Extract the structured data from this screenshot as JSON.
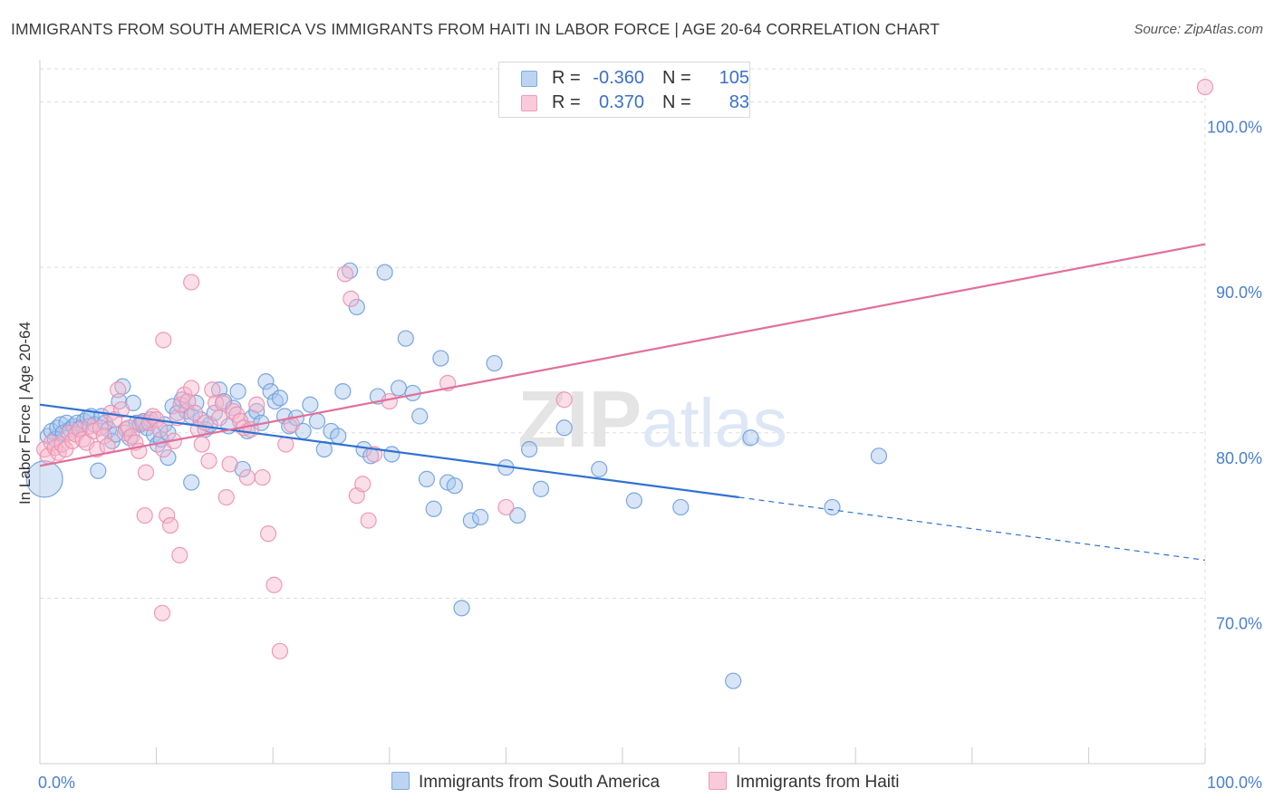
{
  "title": "IMMIGRANTS FROM SOUTH AMERICA VS IMMIGRANTS FROM HAITI IN LABOR FORCE | AGE 20-64 CORRELATION CHART",
  "source": "Source: ZipAtlas.com",
  "watermark": "ZIPatlas",
  "legend": {
    "rows": [
      {
        "r_label": "R =",
        "r_value": "-0.360",
        "n_label": "N =",
        "n_value": "105"
      },
      {
        "r_label": "R =",
        "r_value": "0.370",
        "n_label": "N =",
        "n_value": "83"
      }
    ]
  },
  "colors": {
    "blue_fill": "#a9c6ee",
    "blue_stroke": "#6d9fdc",
    "blue_line": "#2f72d2",
    "pink_fill": "#f6b9cc",
    "pink_stroke": "#ec8fb0",
    "pink_line": "#e0709a",
    "axis_text": "#4a7fcf",
    "grid": "#dddddd"
  },
  "chart_data": {
    "type": "scatter",
    "title": "IMMIGRANTS FROM SOUTH AMERICA VS IMMIGRANTS FROM HAITI IN LABOR FORCE | AGE 20-64 CORRELATION CHART",
    "xlabel": "",
    "ylabel": "In Labor Force | Age 20-64",
    "xlim": [
      0,
      100
    ],
    "ylim": [
      60,
      102
    ],
    "x_tick_labels": [
      "0.0%",
      "100.0%"
    ],
    "y_ticks": [
      70,
      80,
      90,
      100
    ],
    "y_tick_labels": [
      "70.0%",
      "80.0%",
      "90.0%",
      "100.0%"
    ],
    "grid": true,
    "legend_position": "top-center",
    "series": [
      {
        "name": "Immigrants from South America",
        "color": "#a9c6ee",
        "R": -0.36,
        "N": 105,
        "trend": {
          "x_start": 0,
          "y_start": 81.7,
          "x_solid_end": 60,
          "y_solid_end": 76.1,
          "x_end": 100,
          "y_end": 72.3
        },
        "points": [
          [
            0.4,
            77.2
          ],
          [
            0.7,
            79.8
          ],
          [
            1.0,
            80.1
          ],
          [
            1.3,
            79.6
          ],
          [
            1.5,
            80.3
          ],
          [
            1.8,
            80.5
          ],
          [
            2.0,
            80.0
          ],
          [
            2.3,
            80.6
          ],
          [
            2.6,
            80.2
          ],
          [
            2.9,
            80.4
          ],
          [
            3.2,
            80.6
          ],
          [
            3.5,
            80.3
          ],
          [
            3.8,
            80.7
          ],
          [
            4.1,
            80.9
          ],
          [
            4.4,
            81.0
          ],
          [
            4.7,
            80.5
          ],
          [
            5.0,
            77.7
          ],
          [
            5.3,
            81.0
          ],
          [
            5.6,
            80.6
          ],
          [
            5.9,
            80.2
          ],
          [
            6.2,
            79.5
          ],
          [
            6.5,
            79.9
          ],
          [
            6.8,
            81.9
          ],
          [
            7.1,
            82.8
          ],
          [
            7.4,
            80.2
          ],
          [
            7.7,
            79.7
          ],
          [
            8.0,
            81.8
          ],
          [
            8.3,
            80.6
          ],
          [
            8.6,
            80.5
          ],
          [
            8.9,
            80.7
          ],
          [
            9.2,
            80.3
          ],
          [
            9.5,
            80.8
          ],
          [
            9.8,
            79.9
          ],
          [
            10.1,
            79.3
          ],
          [
            10.4,
            79.6
          ],
          [
            10.7,
            80.5
          ],
          [
            11.0,
            80.0
          ],
          [
            11.4,
            81.6
          ],
          [
            11.8,
            81.2
          ],
          [
            12.2,
            82.0
          ],
          [
            12.6,
            81.3
          ],
          [
            13.0,
            81.0
          ],
          [
            13.4,
            81.8
          ],
          [
            13.8,
            80.8
          ],
          [
            14.2,
            80.2
          ],
          [
            14.6,
            80.5
          ],
          [
            15.0,
            81.2
          ],
          [
            15.4,
            82.6
          ],
          [
            15.8,
            81.9
          ],
          [
            16.2,
            80.4
          ],
          [
            16.6,
            81.5
          ],
          [
            17.0,
            82.5
          ],
          [
            17.4,
            77.8
          ],
          [
            17.8,
            80.1
          ],
          [
            18.2,
            80.9
          ],
          [
            18.6,
            81.3
          ],
          [
            19.0,
            80.6
          ],
          [
            19.4,
            83.1
          ],
          [
            19.8,
            82.5
          ],
          [
            20.2,
            81.9
          ],
          [
            20.6,
            82.1
          ],
          [
            21.0,
            81.0
          ],
          [
            21.4,
            80.4
          ],
          [
            22.0,
            80.9
          ],
          [
            22.6,
            80.1
          ],
          [
            23.2,
            81.7
          ],
          [
            23.8,
            80.7
          ],
          [
            24.4,
            79.0
          ],
          [
            25.0,
            80.1
          ],
          [
            25.6,
            79.8
          ],
          [
            26.0,
            82.5
          ],
          [
            26.6,
            89.8
          ],
          [
            27.2,
            87.6
          ],
          [
            27.8,
            79.0
          ],
          [
            28.4,
            78.6
          ],
          [
            29.0,
            82.2
          ],
          [
            29.6,
            89.7
          ],
          [
            30.2,
            78.7
          ],
          [
            30.8,
            82.7
          ],
          [
            31.4,
            85.7
          ],
          [
            32.0,
            82.4
          ],
          [
            32.6,
            81.0
          ],
          [
            33.2,
            77.2
          ],
          [
            33.8,
            75.4
          ],
          [
            34.4,
            84.5
          ],
          [
            35.0,
            77.0
          ],
          [
            35.6,
            76.8
          ],
          [
            36.2,
            69.4
          ],
          [
            37.0,
            74.7
          ],
          [
            37.8,
            74.9
          ],
          [
            39.0,
            84.2
          ],
          [
            40.0,
            77.9
          ],
          [
            41.0,
            75.0
          ],
          [
            42.0,
            79.0
          ],
          [
            43.0,
            76.6
          ],
          [
            45.0,
            80.3
          ],
          [
            48.0,
            77.8
          ],
          [
            51.0,
            75.9
          ],
          [
            55.0,
            75.5
          ],
          [
            61.0,
            79.7
          ],
          [
            68.0,
            75.5
          ],
          [
            72.0,
            78.6
          ],
          [
            59.5,
            65.0
          ],
          [
            11.0,
            78.5
          ],
          [
            13.0,
            77.0
          ]
        ]
      },
      {
        "name": "Immigrants from Haiti",
        "color": "#f6b9cc",
        "R": 0.37,
        "N": 83,
        "trend": {
          "x_start": 0,
          "y_start": 78.0,
          "x_end": 100,
          "y_end": 91.4
        },
        "points": [
          [
            0.4,
            79.0
          ],
          [
            0.7,
            78.6
          ],
          [
            1.0,
            79.4
          ],
          [
            1.3,
            79.1
          ],
          [
            1.6,
            78.8
          ],
          [
            1.9,
            79.3
          ],
          [
            2.2,
            79.0
          ],
          [
            2.5,
            80.0
          ],
          [
            2.8,
            79.5
          ],
          [
            3.1,
            79.9
          ],
          [
            3.4,
            80.2
          ],
          [
            3.7,
            79.6
          ],
          [
            4.0,
            79.4
          ],
          [
            4.3,
            80.4
          ],
          [
            4.6,
            80.1
          ],
          [
            4.9,
            79.0
          ],
          [
            5.2,
            80.3
          ],
          [
            5.5,
            79.8
          ],
          [
            5.8,
            79.2
          ],
          [
            6.1,
            81.2
          ],
          [
            6.4,
            80.8
          ],
          [
            6.7,
            82.6
          ],
          [
            7.0,
            81.4
          ],
          [
            7.3,
            80.0
          ],
          [
            7.6,
            80.3
          ],
          [
            7.9,
            79.8
          ],
          [
            8.2,
            79.4
          ],
          [
            8.5,
            78.9
          ],
          [
            8.8,
            80.6
          ],
          [
            9.1,
            77.6
          ],
          [
            9.4,
            80.6
          ],
          [
            9.7,
            81.0
          ],
          [
            10.0,
            80.8
          ],
          [
            10.3,
            80.2
          ],
          [
            10.6,
            79.0
          ],
          [
            10.9,
            75.0
          ],
          [
            11.2,
            74.4
          ],
          [
            11.5,
            79.5
          ],
          [
            11.8,
            80.9
          ],
          [
            12.1,
            81.7
          ],
          [
            12.4,
            82.3
          ],
          [
            12.7,
            81.9
          ],
          [
            13.0,
            82.7
          ],
          [
            13.3,
            81.2
          ],
          [
            13.6,
            80.2
          ],
          [
            13.9,
            79.3
          ],
          [
            14.2,
            80.6
          ],
          [
            14.5,
            78.3
          ],
          [
            14.8,
            82.6
          ],
          [
            15.1,
            81.8
          ],
          [
            15.4,
            80.9
          ],
          [
            15.7,
            81.8
          ],
          [
            16.0,
            76.1
          ],
          [
            16.3,
            78.1
          ],
          [
            16.6,
            81.3
          ],
          [
            16.9,
            81.1
          ],
          [
            17.2,
            80.7
          ],
          [
            17.5,
            80.3
          ],
          [
            17.8,
            77.3
          ],
          [
            18.1,
            80.2
          ],
          [
            18.6,
            81.7
          ],
          [
            19.1,
            77.3
          ],
          [
            19.6,
            73.9
          ],
          [
            20.1,
            70.8
          ],
          [
            20.6,
            66.8
          ],
          [
            21.1,
            79.3
          ],
          [
            21.6,
            80.5
          ],
          [
            26.2,
            89.6
          ],
          [
            26.7,
            88.1
          ],
          [
            27.2,
            76.2
          ],
          [
            27.7,
            76.9
          ],
          [
            28.2,
            74.7
          ],
          [
            28.7,
            78.7
          ],
          [
            30.0,
            81.9
          ],
          [
            35.0,
            83.0
          ],
          [
            40.0,
            75.5
          ],
          [
            45.0,
            82.0
          ],
          [
            12.0,
            72.6
          ],
          [
            10.6,
            85.6
          ],
          [
            13.0,
            89.1
          ],
          [
            9.0,
            75.0
          ],
          [
            10.5,
            69.1
          ],
          [
            100.0,
            100.9
          ]
        ]
      }
    ]
  }
}
